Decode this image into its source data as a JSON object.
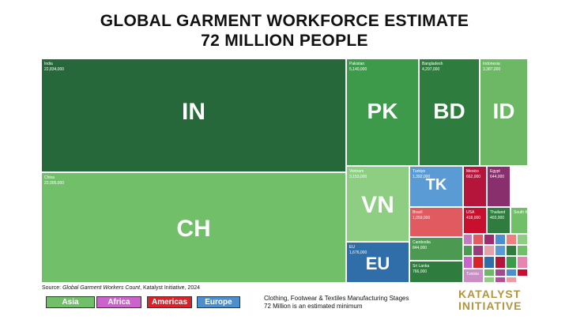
{
  "title_line1": "GLOBAL GARMENT WORKFORCE ESTIMATE",
  "title_line2": "72 MILLION PEOPLE",
  "source_prefix": "Source: ",
  "source_title": "Global Garment Workers Count",
  "source_suffix": ", Katalyst Initiative, 2024",
  "legend": [
    {
      "label": "Asia",
      "color": "#72bf6a"
    },
    {
      "label": "Africa",
      "color": "#cc63cc"
    },
    {
      "label": "Americas",
      "color": "#d8232a"
    },
    {
      "label": "Europe",
      "color": "#4c8fcf"
    }
  ],
  "note_line1": "Clothing, Footwear & Textiles Manufacturing Stages",
  "note_line2": "72 Million is an estimated minimum",
  "logo_line1": "KATALYST",
  "logo_line2": "INITIATIVE",
  "chart_data": {
    "type": "treemap",
    "total": "72 MILLION PEOPLE",
    "items": [
      {
        "name": "India",
        "abbr": "IN",
        "value": "22,834,000",
        "region": "Asia",
        "color": "#26683a"
      },
      {
        "name": "China",
        "abbr": "CH",
        "value": "22,005,000",
        "region": "Asia",
        "color": "#72bf6a"
      },
      {
        "name": "Pakistan",
        "abbr": "PK",
        "value": "5,140,000",
        "region": "Asia",
        "color": "#3d9a4b"
      },
      {
        "name": "Bangladesh",
        "abbr": "BD",
        "value": "4,297,000",
        "region": "Asia",
        "color": "#2e7d3e"
      },
      {
        "name": "Indonesia",
        "abbr": "ID",
        "value": "3,387,000",
        "region": "Asia",
        "color": "#6cb864"
      },
      {
        "name": "Vietnam",
        "abbr": "VN",
        "value": "3,153,000",
        "region": "Asia",
        "color": "#8dce83"
      },
      {
        "name": "EU",
        "abbr": "EU",
        "value": "1,676,000",
        "region": "Europe",
        "color": "#2f6ea8"
      },
      {
        "name": "Turkiye",
        "abbr": "TK",
        "value": "1,392,000",
        "region": "Europe",
        "color": "#5b9bd5"
      },
      {
        "name": "Mexico",
        "abbr": "",
        "value": "662,000",
        "region": "Americas",
        "color": "#b5153a"
      },
      {
        "name": "Egypt",
        "abbr": "",
        "value": "644,000",
        "region": "Africa",
        "color": "#8a2f6e"
      },
      {
        "name": "Brazil",
        "abbr": "",
        "value": "1,059,000",
        "region": "Americas",
        "color": "#e05a5f"
      },
      {
        "name": "USA",
        "abbr": "",
        "value": "418,000",
        "region": "Americas",
        "color": "#c8102e"
      },
      {
        "name": "Thailand",
        "abbr": "",
        "value": "403,000",
        "region": "Asia",
        "color": "#2e7d3e"
      },
      {
        "name": "South Korea",
        "abbr": "",
        "value": "",
        "region": "Asia",
        "color": "#72bf6a"
      },
      {
        "name": "Cambodia",
        "abbr": "",
        "value": "844,000",
        "region": "Asia",
        "color": "#4c9a52"
      },
      {
        "name": "Sri Lanka",
        "abbr": "",
        "value": "766,000",
        "region": "Asia",
        "color": "#2e7d3e"
      },
      {
        "name": "Tunisia",
        "abbr": "",
        "value": "",
        "region": "Africa",
        "color": "#c98fc4"
      }
    ],
    "unlabeled_small_tiles": [
      "#c67bc0",
      "#e35a60",
      "#9f2b6f",
      "#4c8fcf",
      "#f08080",
      "#8dce83",
      "#4c9a52",
      "#9a3c7c",
      "#e6a0a8",
      "#5b9bd5",
      "#2e7d3e",
      "#72bf6a",
      "#cc63cc",
      "#d8232a",
      "#2f6ea8",
      "#b5153a",
      "#3d9a4b",
      "#e884b0",
      "#6cb864",
      "#a04a90",
      "#4c8fcf",
      "#c8102e",
      "#8dce83",
      "#b44d9a",
      "#ef9aa0"
    ]
  }
}
